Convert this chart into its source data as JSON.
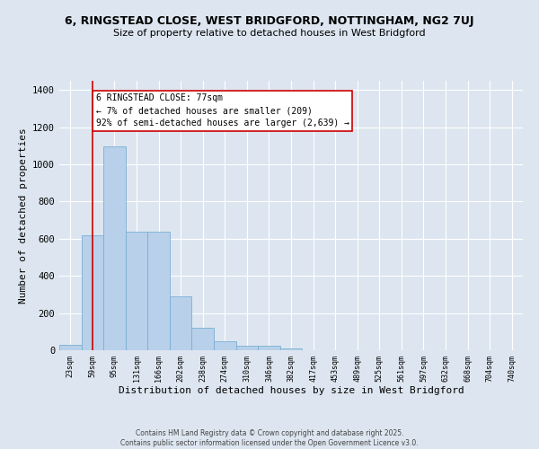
{
  "title": "6, RINGSTEAD CLOSE, WEST BRIDGFORD, NOTTINGHAM, NG2 7UJ",
  "subtitle": "Size of property relative to detached houses in West Bridgford",
  "xlabel": "Distribution of detached houses by size in West Bridgford",
  "ylabel": "Number of detached properties",
  "categories": [
    "23sqm",
    "59sqm",
    "95sqm",
    "131sqm",
    "166sqm",
    "202sqm",
    "238sqm",
    "274sqm",
    "310sqm",
    "346sqm",
    "382sqm",
    "417sqm",
    "453sqm",
    "489sqm",
    "525sqm",
    "561sqm",
    "597sqm",
    "632sqm",
    "668sqm",
    "704sqm",
    "740sqm"
  ],
  "values": [
    30,
    620,
    1095,
    640,
    640,
    290,
    120,
    47,
    22,
    22,
    10,
    0,
    0,
    0,
    0,
    0,
    0,
    0,
    0,
    0,
    0
  ],
  "bar_color": "#b8d0ea",
  "bar_edge_color": "#7aafd4",
  "background_color": "#dde6f0",
  "grid_color": "#ffffff",
  "vline_x": 1,
  "vline_color": "#cc0000",
  "annotation_text": "6 RINGSTEAD CLOSE: 77sqm\n← 7% of detached houses are smaller (209)\n92% of semi-detached houses are larger (2,639) →",
  "annotation_box_color": "#ffffff",
  "annotation_box_edge": "#cc0000",
  "footer1": "Contains HM Land Registry data © Crown copyright and database right 2025.",
  "footer2": "Contains public sector information licensed under the Open Government Licence v3.0.",
  "ylim": [
    0,
    1450
  ],
  "yticks": [
    0,
    200,
    400,
    600,
    800,
    1000,
    1200,
    1400
  ]
}
